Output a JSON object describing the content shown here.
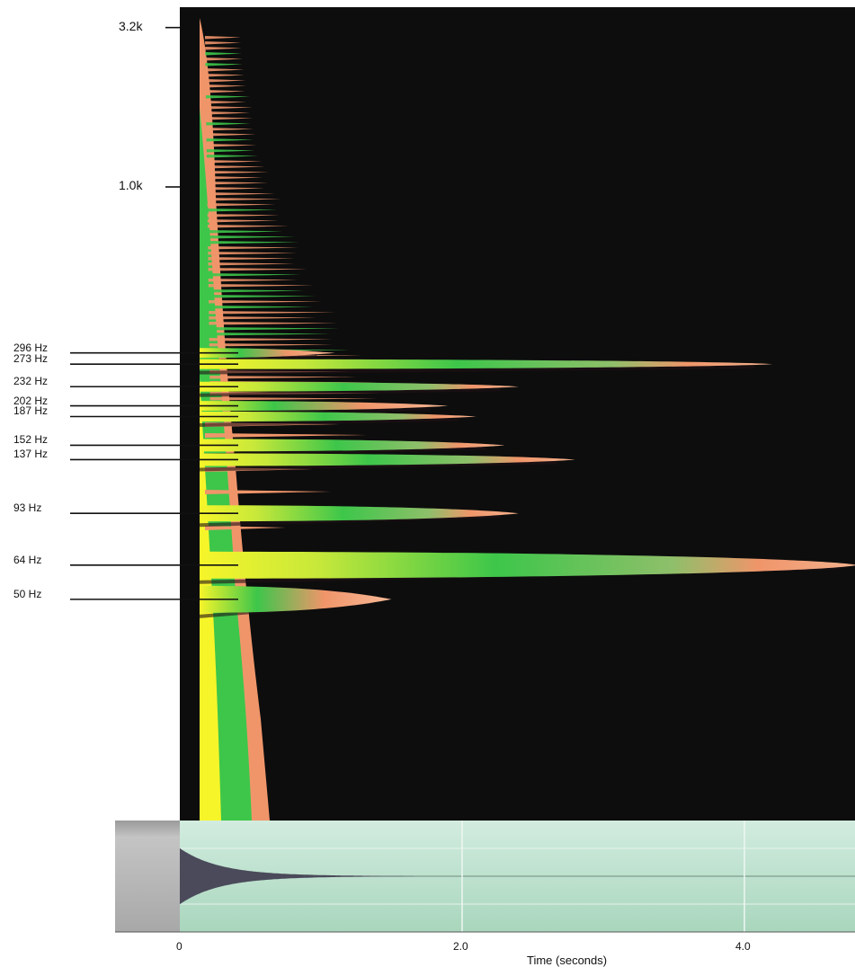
{
  "chart_data": {
    "type": "heatmap",
    "xlabel": "Time (seconds)",
    "x_ticks": [
      "0",
      "2.0",
      "4.0"
    ],
    "x_tick_values": [
      0,
      2.0,
      4.0
    ],
    "xlim": [
      0,
      4.8
    ],
    "y_scale": "log",
    "y_major_ticks": [
      {
        "label": "3.2k",
        "hz": 3200
      },
      {
        "label": "1.0k",
        "hz": 1000
      }
    ],
    "partials": [
      {
        "label": "296 Hz",
        "hz": 296,
        "decay_s": 1.1
      },
      {
        "label": "273 Hz",
        "hz": 273,
        "decay_s": 4.2
      },
      {
        "label": "232 Hz",
        "hz": 232,
        "decay_s": 2.4
      },
      {
        "label": "202 Hz",
        "hz": 202,
        "decay_s": 1.9
      },
      {
        "label": "187 Hz",
        "hz": 187,
        "decay_s": 2.1
      },
      {
        "label": "152 Hz",
        "hz": 152,
        "decay_s": 2.3
      },
      {
        "label": "137 Hz",
        "hz": 137,
        "decay_s": 2.8
      },
      {
        "label": "93 Hz",
        "hz": 93,
        "decay_s": 2.4
      },
      {
        "label": "64 Hz",
        "hz": 64,
        "decay_s": 4.8
      },
      {
        "label": "50 Hz",
        "hz": 50,
        "decay_s": 1.5
      }
    ],
    "colors": {
      "background": "#0d0d0d",
      "low_energy": "#f0956a",
      "mid_energy": "#3dc64a",
      "high_energy": "#f6f52a",
      "waveform_panel": "#b6dcc8",
      "waveform": "#4a4a5a"
    }
  }
}
